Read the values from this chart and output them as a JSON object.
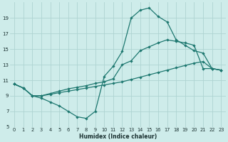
{
  "background_color": "#ceecea",
  "grid_color": "#aed4d2",
  "line_color": "#1e7870",
  "xlabel": "Humidex (Indice chaleur)",
  "xlim": [
    -0.5,
    23.5
  ],
  "ylim": [
    5,
    21
  ],
  "xticks": [
    0,
    1,
    2,
    3,
    4,
    5,
    6,
    7,
    8,
    9,
    10,
    11,
    12,
    13,
    14,
    15,
    16,
    17,
    18,
    19,
    20,
    21,
    22,
    23
  ],
  "yticks": [
    5,
    7,
    9,
    11,
    13,
    15,
    17,
    19
  ],
  "line1_x": [
    0,
    1,
    2,
    3,
    4,
    5,
    6,
    7,
    8,
    9,
    10,
    11,
    12,
    13,
    14,
    15,
    16,
    17,
    18,
    19,
    20,
    21,
    22,
    23
  ],
  "line1_y": [
    10.5,
    10.0,
    9.0,
    8.7,
    8.2,
    7.7,
    7.0,
    6.3,
    6.1,
    7.0,
    11.5,
    12.8,
    14.7,
    19.0,
    20.0,
    20.3,
    19.2,
    18.5,
    16.2,
    15.5,
    14.8,
    14.5,
    12.5,
    12.3
  ],
  "line2_x": [
    0,
    1,
    2,
    3,
    4,
    5,
    6,
    7,
    8,
    9,
    10,
    11,
    12,
    13,
    14,
    15,
    16,
    17,
    18,
    19,
    20,
    21,
    22,
    23
  ],
  "line2_y": [
    10.5,
    10.0,
    9.0,
    9.0,
    9.2,
    9.4,
    9.6,
    9.8,
    10.0,
    10.2,
    10.4,
    10.6,
    10.8,
    11.1,
    11.4,
    11.7,
    12.0,
    12.3,
    12.6,
    12.9,
    13.2,
    13.4,
    12.5,
    12.3
  ],
  "line3_x": [
    0,
    1,
    2,
    3,
    4,
    5,
    6,
    7,
    8,
    9,
    10,
    11,
    12,
    13,
    14,
    15,
    16,
    17,
    18,
    19,
    20,
    21,
    22,
    23
  ],
  "line3_y": [
    10.5,
    10.0,
    9.0,
    9.0,
    9.3,
    9.6,
    9.9,
    10.1,
    10.3,
    10.6,
    10.8,
    11.2,
    13.0,
    13.5,
    14.8,
    15.3,
    15.8,
    16.2,
    16.0,
    15.8,
    15.5,
    12.5,
    12.5,
    12.3
  ]
}
